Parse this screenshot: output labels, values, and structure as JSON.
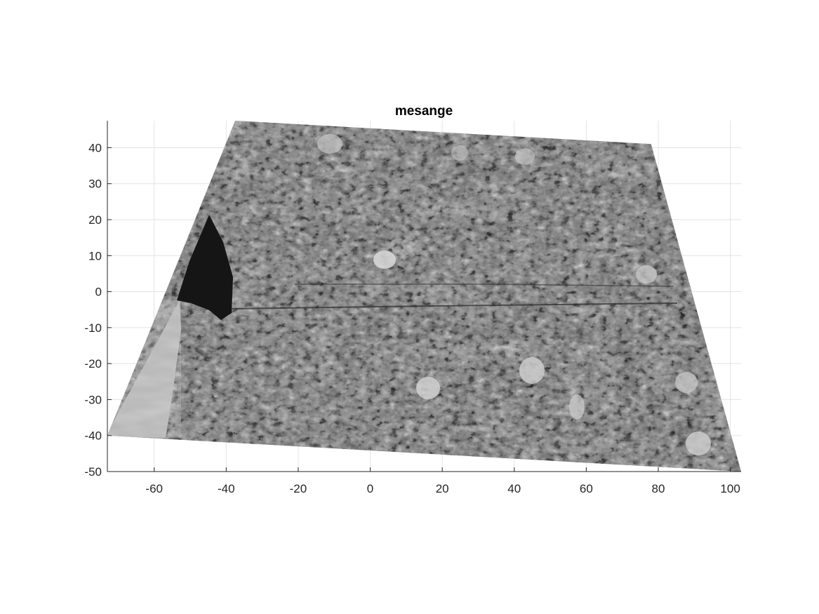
{
  "figure": {
    "title": "mesange"
  },
  "axes": {
    "x_range": [
      -73,
      103
    ],
    "y_range": [
      -50,
      47.5
    ],
    "x_ticks": [
      -60,
      -40,
      -20,
      0,
      20,
      40,
      60,
      80,
      100
    ],
    "y_ticks": [
      40,
      30,
      20,
      10,
      0,
      -10,
      -20,
      -30,
      -40,
      -50
    ],
    "grid": true,
    "colormap": "gray"
  },
  "image_layer": {
    "content": "grayscale mosaic map",
    "footprint_corners": [
      [
        -37.5,
        47.5
      ],
      [
        78,
        41
      ],
      [
        103,
        -50
      ],
      [
        -73,
        -40
      ]
    ]
  },
  "colors": {
    "axis": "#262626",
    "grid": "#e3e3e3",
    "background": "#ffffff"
  }
}
